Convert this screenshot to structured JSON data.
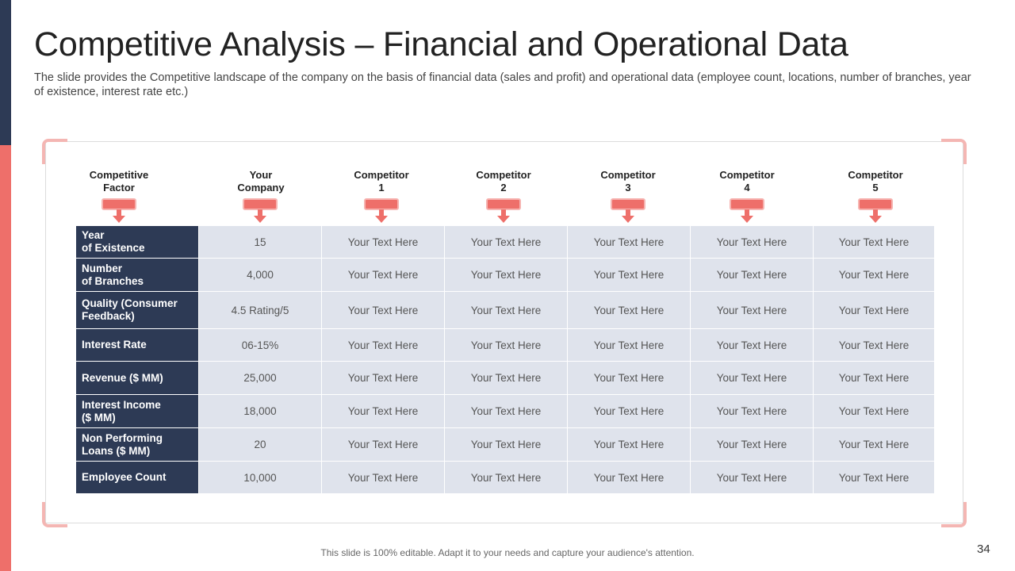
{
  "title": "Competitive Analysis – Financial and Operational Data",
  "subtitle": "The slide provides the Competitive landscape of the company on the basis of financial data (sales and profit) and operational data (employee count, locations, number of branches, year of existence, interest rate etc.)",
  "headers": [
    {
      "line1": "Competitive",
      "line2": "Factor"
    },
    {
      "line1": "Your",
      "line2": "Company"
    },
    {
      "line1": "Competitor",
      "line2": "1"
    },
    {
      "line1": "Competitor",
      "line2": "2"
    },
    {
      "line1": "Competitor",
      "line2": "3"
    },
    {
      "line1": "Competitor",
      "line2": "4"
    },
    {
      "line1": "Competitor",
      "line2": "5"
    }
  ],
  "rows": [
    {
      "factor_line1": "Year",
      "factor_line2": "of Existence",
      "your_company": "15",
      "competitors": [
        "Your Text Here",
        "Your Text Here",
        "Your Text Here",
        "Your Text Here",
        "Your Text Here"
      ]
    },
    {
      "factor_line1": "Number",
      "factor_line2": "of Branches",
      "your_company": "4,000",
      "competitors": [
        "Your Text Here",
        "Your Text Here",
        "Your Text Here",
        "Your Text Here",
        "Your Text Here"
      ]
    },
    {
      "factor_line1": "Quality (Consumer",
      "factor_line2": "Feedback)",
      "your_company": "4.5 Rating/5",
      "competitors": [
        "Your Text Here",
        "Your Text Here",
        "Your Text Here",
        "Your Text Here",
        "Your Text Here"
      ]
    },
    {
      "factor_line1": "Interest Rate",
      "factor_line2": "",
      "your_company": "06-15%",
      "competitors": [
        "Your Text Here",
        "Your Text Here",
        "Your Text Here",
        "Your Text Here",
        "Your Text Here"
      ]
    },
    {
      "factor_line1": "Revenue ($ MM)",
      "factor_line2": "",
      "your_company": "25,000",
      "competitors": [
        "Your Text Here",
        "Your Text Here",
        "Your Text Here",
        "Your Text Here",
        "Your Text Here"
      ]
    },
    {
      "factor_line1": "Interest Income",
      "factor_line2": "($ MM)",
      "your_company": "18,000",
      "competitors": [
        "Your Text Here",
        "Your Text Here",
        "Your Text Here",
        "Your Text Here",
        "Your Text Here"
      ]
    },
    {
      "factor_line1": "Non Performing",
      "factor_line2": "Loans ($ MM)",
      "your_company": "20",
      "competitors": [
        "Your Text Here",
        "Your Text Here",
        "Your Text Here",
        "Your Text Here",
        "Your Text Here"
      ]
    },
    {
      "factor_line1": "Employee Count",
      "factor_line2": "",
      "your_company": "10,000",
      "competitors": [
        "Your Text Here",
        "Your Text Here",
        "Your Text Here",
        "Your Text Here",
        "Your Text Here"
      ]
    }
  ],
  "footer": "This slide is 100% editable. Adapt it to your needs and capture your audience's attention.",
  "page_number": "34",
  "colors": {
    "navy": "#2d3a55",
    "coral": "#ee6f6a",
    "cell": "#dfe3ec",
    "corner": "#f4b6b3"
  },
  "icons": {
    "header_marker": "down-arrow-icon"
  }
}
